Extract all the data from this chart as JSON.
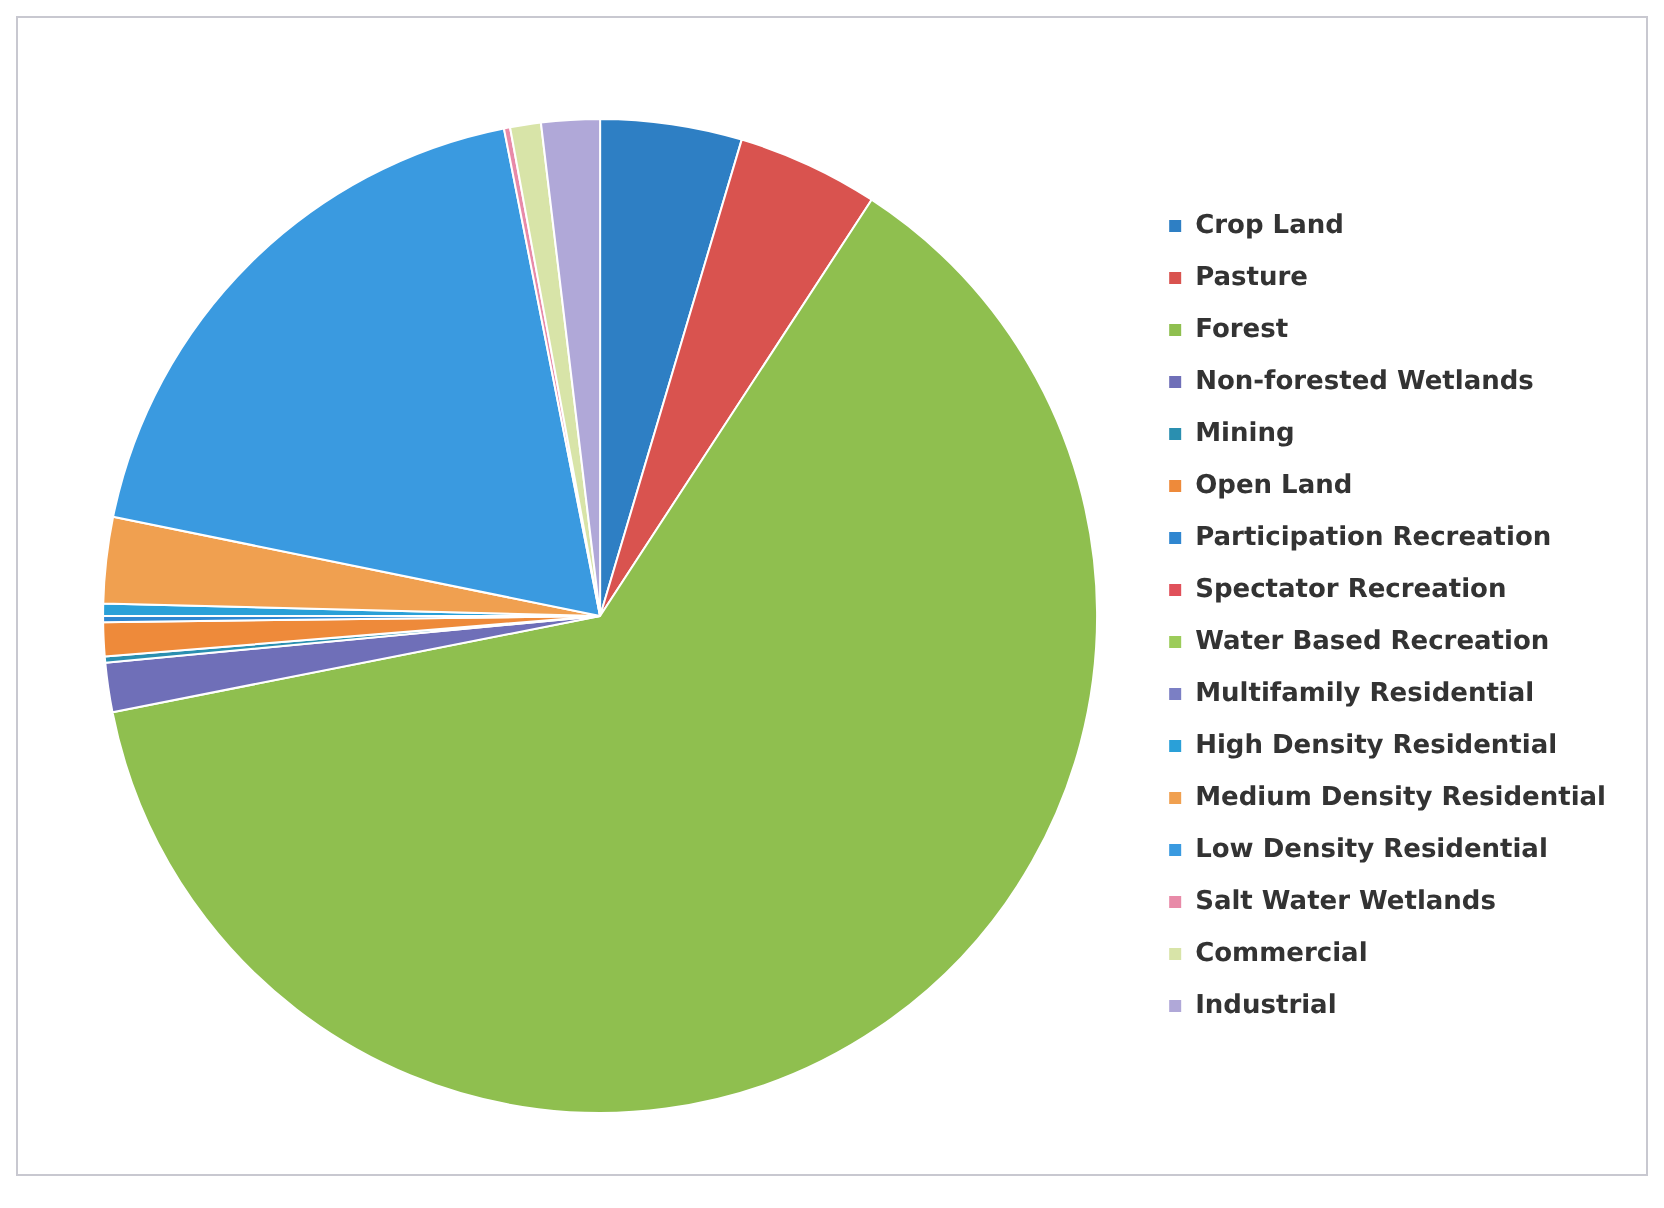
{
  "chart_data": {
    "type": "pie",
    "categories": [
      "Crop Land",
      "Pasture",
      "Forest",
      "Non-forested Wetlands",
      "Mining",
      "Open Land",
      "Participation Recreation",
      "Spectator Recreation",
      "Water Based Recreation",
      "Multifamily Residential",
      "High Density Residential",
      "Medium Density Residential",
      "Low Density Residential",
      "Salt Water Wetlands",
      "Commercial",
      "Industrial"
    ],
    "values": [
      4.6,
      4.6,
      62.7,
      1.6,
      0.2,
      1.1,
      0.2,
      null,
      null,
      null,
      0.4,
      2.8,
      18.7,
      0.2,
      1.0,
      1.9
    ],
    "colors": [
      "#2e7fc4",
      "#d9534f",
      "#8fbf4f",
      "#6f6fb8",
      "#2a8fb0",
      "#ee8a3a",
      "#2f86d0",
      "#e0505a",
      "#9ccc5a",
      "#7b7fc4",
      "#2aa0d8",
      "#f0a050",
      "#3a9ae0",
      "#e88aa8",
      "#d8e4a8",
      "#b0a8d8"
    ],
    "legend": "right"
  }
}
